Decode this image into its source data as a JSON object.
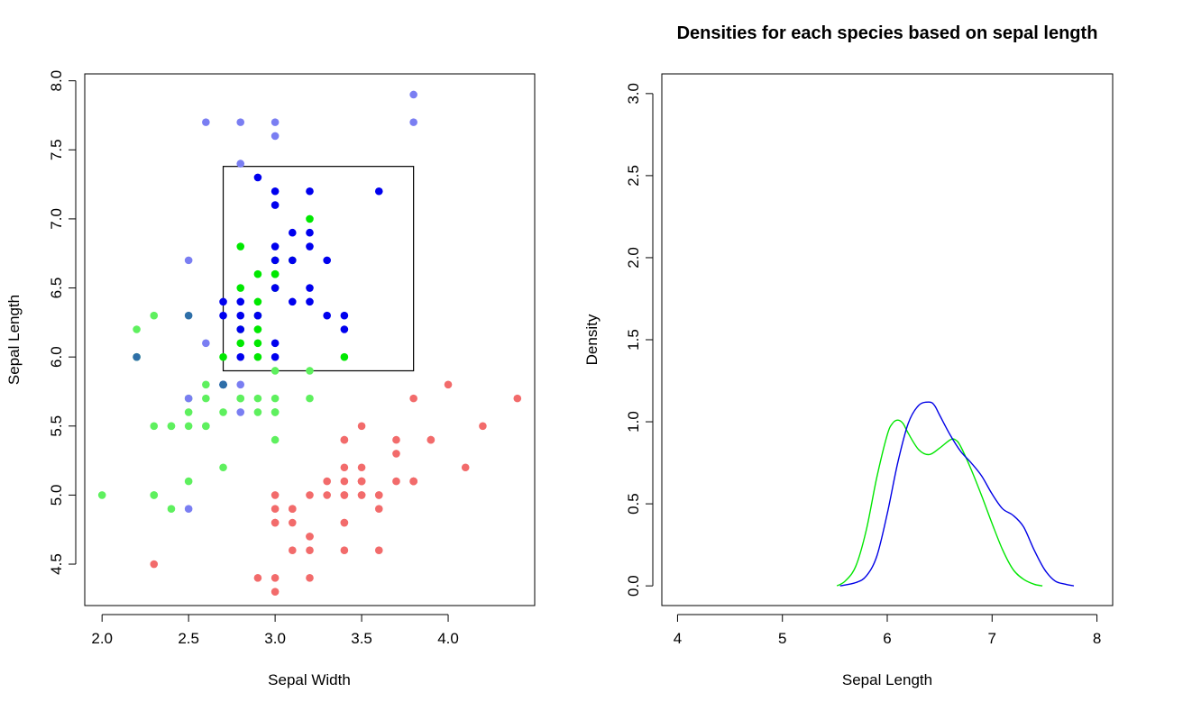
{
  "chart_data": [
    {
      "type": "scatter",
      "title": "",
      "xlabel": "Sepal Width",
      "ylabel": "Sepal Length",
      "xlim": [
        1.9,
        4.5
      ],
      "ylim": [
        4.2,
        8.05
      ],
      "xticks": [
        "2.0",
        "2.5",
        "3.0",
        "3.5",
        "4.0"
      ],
      "yticks": [
        "4.5",
        "5.0",
        "5.5",
        "6.0",
        "6.5",
        "7.0",
        "7.5",
        "8.0"
      ],
      "selection_box": {
        "x": [
          2.7,
          3.8
        ],
        "y": [
          5.9,
          7.38
        ]
      },
      "series": [
        {
          "color": "#f26b6b",
          "points": [
            [
              3.5,
              5.1
            ],
            [
              3.0,
              4.9
            ],
            [
              3.2,
              4.7
            ],
            [
              3.1,
              4.6
            ],
            [
              3.6,
              5.0
            ],
            [
              3.9,
              5.4
            ],
            [
              3.4,
              4.6
            ],
            [
              3.4,
              5.0
            ],
            [
              2.9,
              4.4
            ],
            [
              3.1,
              4.9
            ],
            [
              3.7,
              5.4
            ],
            [
              3.4,
              4.8
            ],
            [
              3.0,
              4.8
            ],
            [
              3.0,
              4.3
            ],
            [
              4.0,
              5.8
            ],
            [
              4.4,
              5.7
            ],
            [
              3.9,
              5.4
            ],
            [
              3.5,
              5.1
            ],
            [
              3.8,
              5.7
            ],
            [
              3.8,
              5.1
            ],
            [
              3.4,
              5.4
            ],
            [
              3.7,
              5.1
            ],
            [
              3.6,
              4.6
            ],
            [
              3.3,
              5.1
            ],
            [
              3.4,
              4.8
            ],
            [
              3.0,
              5.0
            ],
            [
              3.4,
              5.0
            ],
            [
              3.5,
              5.2
            ],
            [
              3.4,
              5.2
            ],
            [
              3.2,
              4.7
            ],
            [
              3.1,
              4.8
            ],
            [
              3.4,
              5.4
            ],
            [
              4.1,
              5.2
            ],
            [
              4.2,
              5.5
            ],
            [
              3.1,
              4.9
            ],
            [
              3.2,
              5.0
            ],
            [
              3.5,
              5.5
            ],
            [
              3.6,
              4.9
            ],
            [
              3.0,
              4.4
            ],
            [
              3.4,
              5.1
            ],
            [
              3.5,
              5.0
            ],
            [
              2.3,
              4.5
            ],
            [
              3.2,
              4.4
            ],
            [
              3.5,
              5.0
            ],
            [
              3.8,
              5.1
            ],
            [
              3.0,
              4.8
            ],
            [
              3.8,
              5.1
            ],
            [
              3.2,
              4.6
            ],
            [
              3.7,
              5.3
            ],
            [
              3.3,
              5.0
            ],
            [
              3.5,
              5.1
            ],
            [
              3.6,
              5.0
            ]
          ]
        },
        {
          "color": "#5ef05e",
          "points": [
            [
              2.3,
              5.5
            ],
            [
              2.8,
              5.7
            ],
            [
              2.4,
              4.9
            ],
            [
              2.9,
              5.6
            ],
            [
              2.7,
              5.8
            ],
            [
              2.0,
              5.0
            ],
            [
              3.0,
              5.9
            ],
            [
              2.2,
              6.2
            ],
            [
              2.5,
              5.6
            ],
            [
              2.7,
              5.8
            ],
            [
              2.2,
              6.0
            ],
            [
              2.5,
              5.5
            ],
            [
              2.4,
              5.5
            ],
            [
              2.7,
              5.8
            ],
            [
              2.6,
              5.8
            ],
            [
              2.6,
              5.7
            ],
            [
              2.3,
              5.0
            ],
            [
              2.7,
              5.6
            ],
            [
              3.0,
              5.7
            ],
            [
              2.9,
              5.7
            ],
            [
              2.9,
              6.2
            ],
            [
              2.5,
              5.1
            ],
            [
              2.8,
              5.7
            ],
            [
              2.4,
              5.5
            ],
            [
              2.3,
              6.3
            ],
            [
              3.0,
              5.6
            ],
            [
              3.0,
              5.4
            ],
            [
              3.0,
              5.6
            ],
            [
              2.6,
              5.5
            ],
            [
              2.3,
              5.0
            ],
            [
              2.7,
              5.2
            ],
            [
              3.2,
              5.9
            ],
            [
              2.5,
              5.7
            ],
            [
              2.6,
              5.5
            ],
            [
              3.2,
              5.7
            ]
          ]
        },
        {
          "color": "#00e800",
          "points": [
            [
              3.2,
              7.0
            ],
            [
              2.9,
              6.6
            ],
            [
              2.8,
              6.5
            ],
            [
              2.8,
              6.8
            ],
            [
              3.0,
              6.6
            ],
            [
              3.0,
              6.5
            ],
            [
              2.9,
              6.4
            ],
            [
              2.8,
              6.1
            ],
            [
              2.9,
              6.3
            ],
            [
              3.0,
              6.6
            ],
            [
              3.0,
              6.7
            ],
            [
              2.9,
              6.1
            ],
            [
              2.9,
              6.0
            ],
            [
              2.7,
              6.0
            ],
            [
              3.4,
              6.0
            ],
            [
              2.8,
              6.2
            ],
            [
              3.1,
              6.7
            ],
            [
              2.9,
              6.2
            ]
          ]
        },
        {
          "color": "#7a7ef2",
          "points": [
            [
              3.8,
              7.9
            ],
            [
              3.8,
              7.7
            ],
            [
              2.6,
              7.7
            ],
            [
              2.8,
              7.7
            ],
            [
              3.0,
              7.7
            ],
            [
              3.0,
              7.6
            ],
            [
              2.8,
              7.4
            ],
            [
              2.5,
              6.7
            ],
            [
              2.6,
              6.1
            ],
            [
              2.5,
              5.7
            ],
            [
              2.8,
              5.8
            ],
            [
              2.8,
              5.6
            ],
            [
              2.7,
              5.8
            ],
            [
              2.5,
              4.9
            ]
          ]
        },
        {
          "color": "#0000ee",
          "points": [
            [
              2.9,
              7.3
            ],
            [
              3.0,
              7.2
            ],
            [
              3.2,
              7.2
            ],
            [
              3.6,
              7.2
            ],
            [
              3.0,
              7.1
            ],
            [
              3.1,
              6.9
            ],
            [
              3.2,
              6.9
            ],
            [
              3.0,
              6.8
            ],
            [
              3.2,
              6.8
            ],
            [
              3.0,
              6.7
            ],
            [
              3.1,
              6.7
            ],
            [
              3.3,
              6.7
            ],
            [
              3.0,
              6.5
            ],
            [
              3.2,
              6.5
            ],
            [
              2.7,
              6.4
            ],
            [
              2.8,
              6.4
            ],
            [
              3.1,
              6.4
            ],
            [
              3.2,
              6.4
            ],
            [
              2.7,
              6.3
            ],
            [
              2.8,
              6.3
            ],
            [
              2.9,
              6.3
            ],
            [
              3.3,
              6.3
            ],
            [
              3.4,
              6.3
            ],
            [
              2.8,
              6.2
            ],
            [
              3.4,
              6.2
            ],
            [
              3.0,
              6.1
            ],
            [
              3.0,
              6.0
            ],
            [
              2.8,
              6.0
            ],
            [
              2.7,
              5.8
            ]
          ]
        },
        {
          "color": "#2e6fa8",
          "points": [
            [
              2.2,
              6.0
            ],
            [
              2.5,
              6.3
            ],
            [
              2.7,
              5.8
            ]
          ]
        }
      ]
    },
    {
      "type": "line",
      "title": "Densities for each species based on sepal length",
      "xlabel": "Sepal Length",
      "ylabel": "Density",
      "xlim": [
        3.85,
        8.15
      ],
      "ylim": [
        -0.12,
        3.12
      ],
      "xticks": [
        "4",
        "5",
        "6",
        "7",
        "8"
      ],
      "yticks": [
        "0.0",
        "0.5",
        "1.0",
        "1.5",
        "2.0",
        "2.5",
        "3.0"
      ],
      "series": [
        {
          "color": "#00e600",
          "x": [
            5.52,
            5.6,
            5.7,
            5.8,
            5.9,
            6.0,
            6.05,
            6.1,
            6.15,
            6.2,
            6.3,
            6.4,
            6.5,
            6.6,
            6.65,
            6.7,
            6.8,
            6.9,
            7.0,
            7.1,
            7.2,
            7.3,
            7.4,
            7.48
          ],
          "y": [
            0.0,
            0.03,
            0.12,
            0.34,
            0.66,
            0.92,
            0.99,
            1.01,
            0.99,
            0.93,
            0.83,
            0.8,
            0.84,
            0.89,
            0.89,
            0.85,
            0.71,
            0.55,
            0.38,
            0.22,
            0.1,
            0.04,
            0.01,
            0.0
          ]
        },
        {
          "color": "#0000e6",
          "x": [
            5.55,
            5.7,
            5.8,
            5.9,
            6.0,
            6.1,
            6.2,
            6.3,
            6.4,
            6.45,
            6.5,
            6.6,
            6.7,
            6.8,
            6.9,
            7.0,
            7.1,
            7.2,
            7.3,
            7.4,
            7.5,
            7.6,
            7.7,
            7.78
          ],
          "y": [
            0.0,
            0.02,
            0.06,
            0.18,
            0.44,
            0.75,
            0.99,
            1.1,
            1.12,
            1.1,
            1.04,
            0.92,
            0.82,
            0.75,
            0.67,
            0.56,
            0.47,
            0.43,
            0.36,
            0.22,
            0.1,
            0.03,
            0.01,
            0.0
          ]
        }
      ]
    }
  ]
}
